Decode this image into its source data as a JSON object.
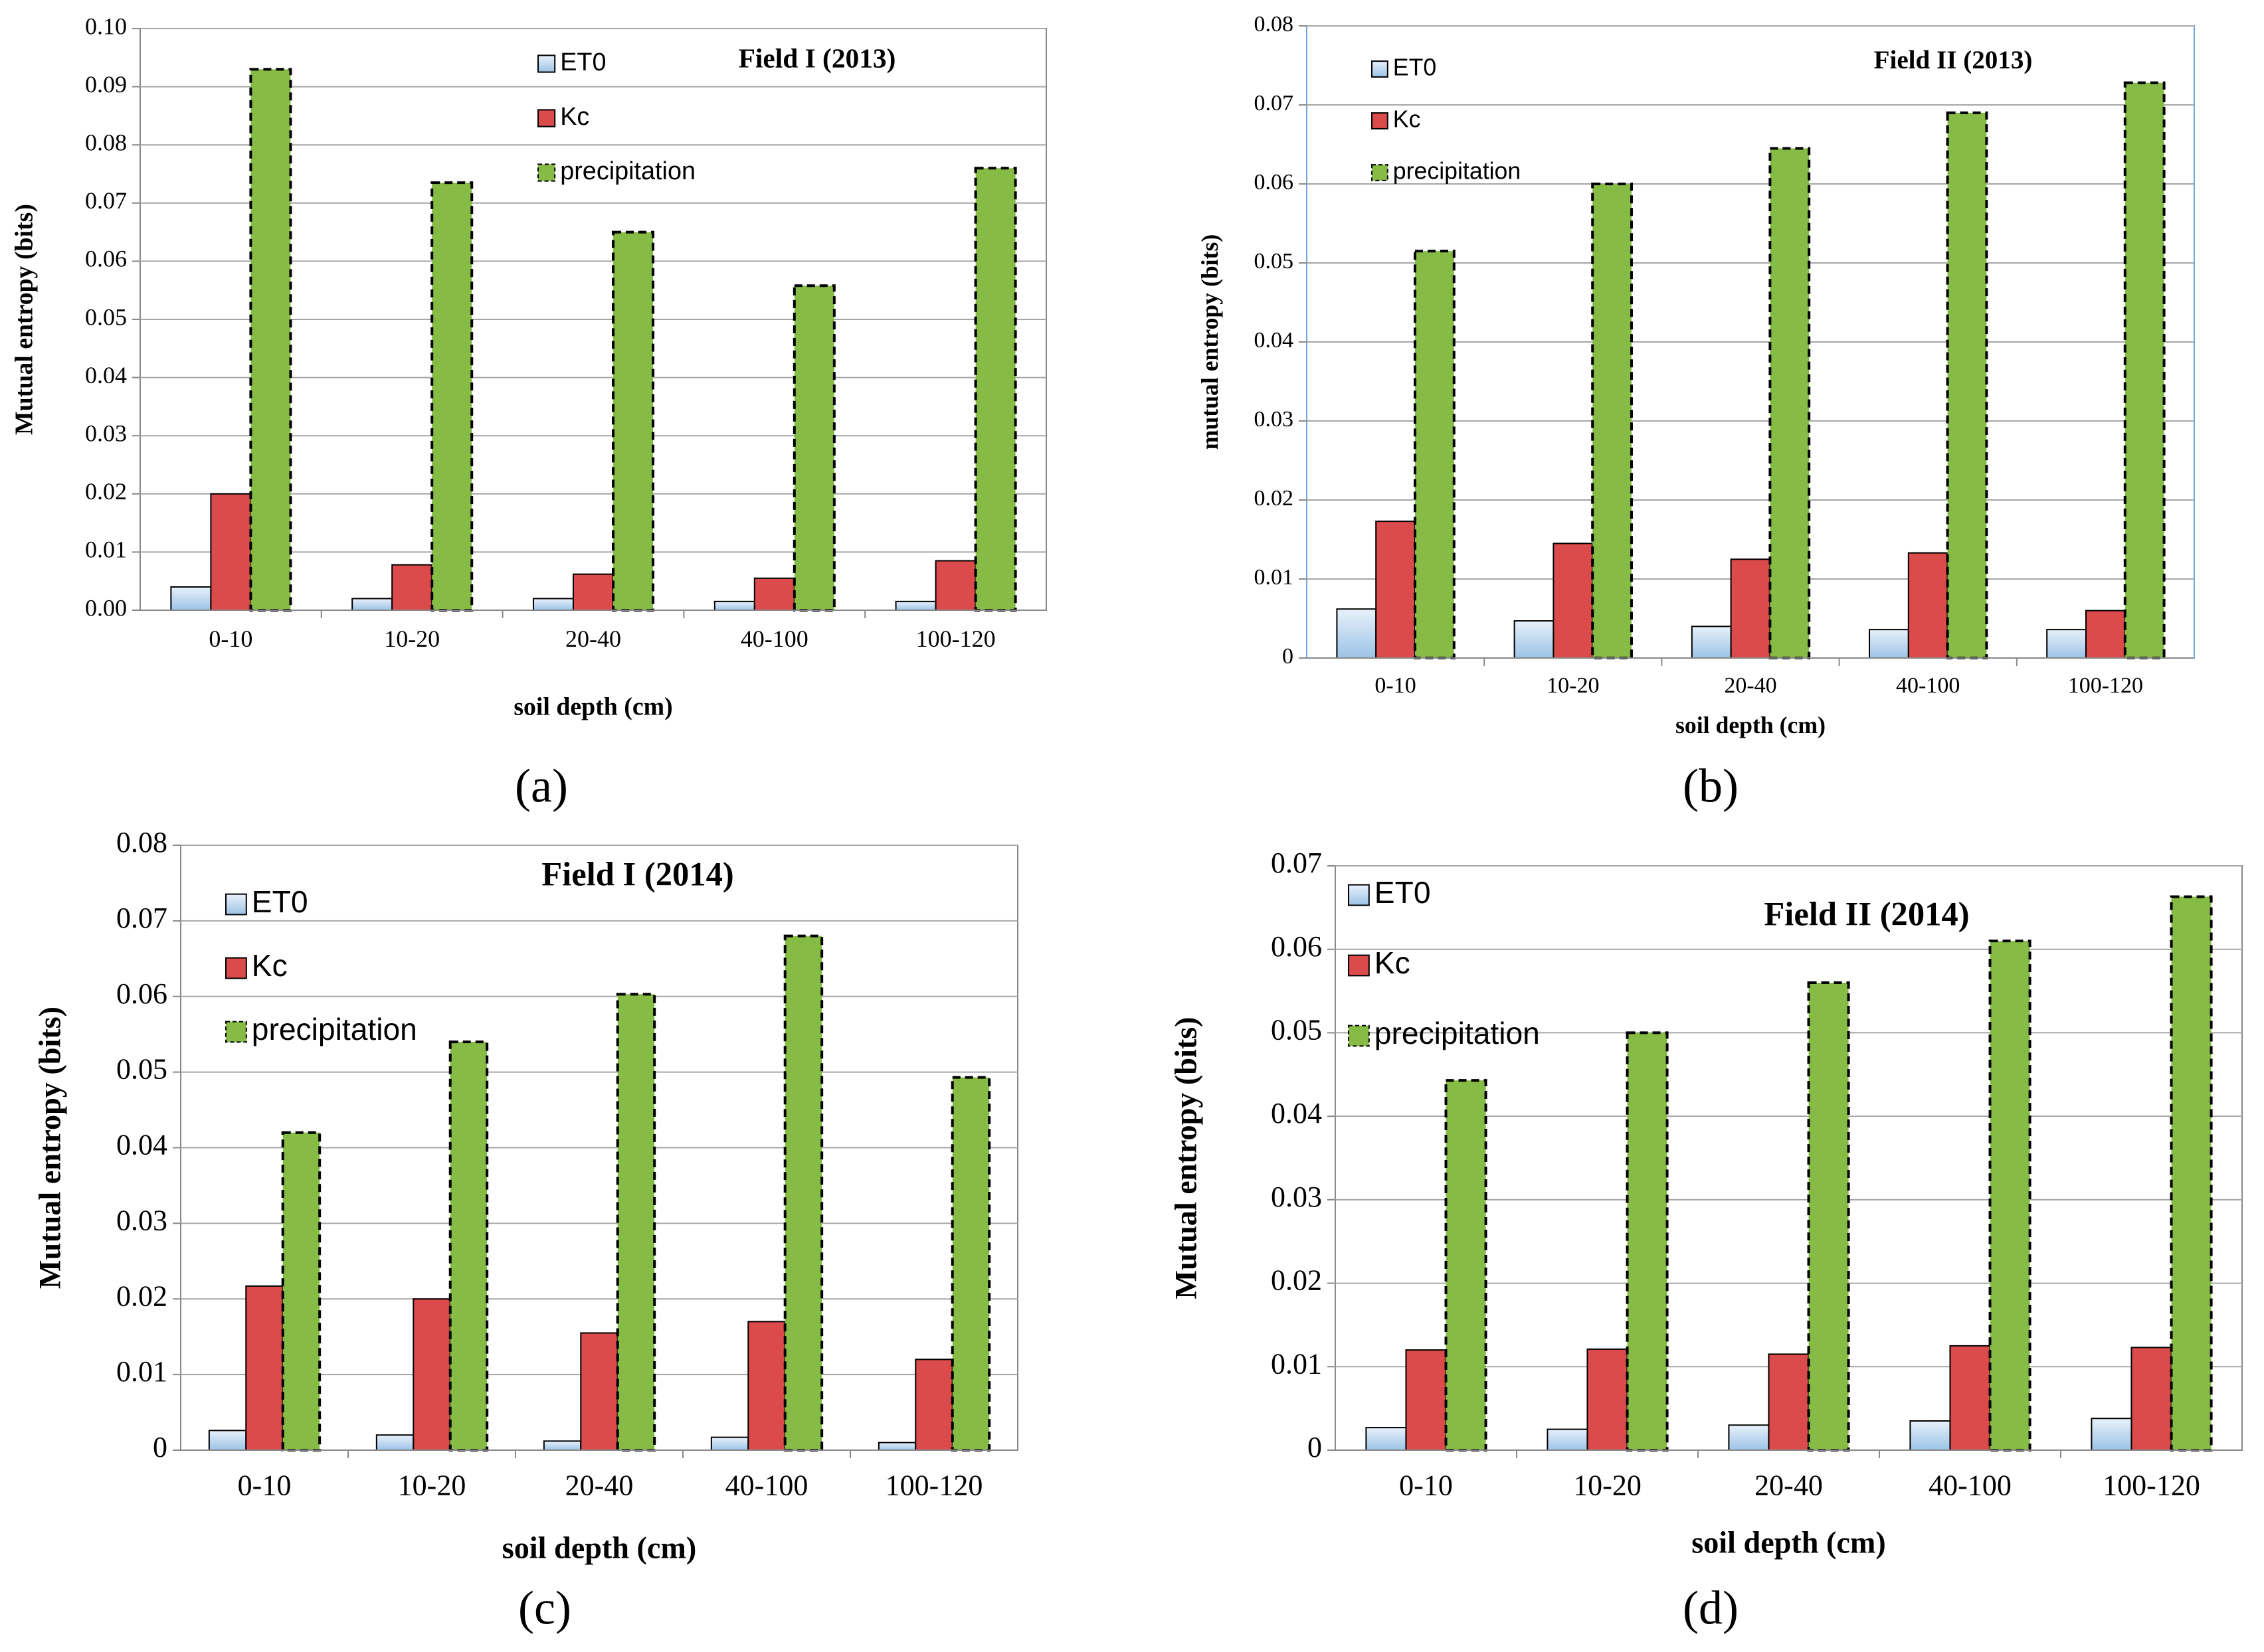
{
  "chart_data": [
    {
      "type": "bar",
      "panel_label": "(a)",
      "title": "Field I (2013)",
      "y_label": "Mutual entropy (bits)",
      "x_label": "soil depth (cm)",
      "categories": [
        "0-10",
        "10-20",
        "20-40",
        "40-100",
        "100-120"
      ],
      "series": [
        {
          "name": "ET0",
          "color": "#bdd7ee",
          "values": [
            0.004,
            0.002,
            0.002,
            0.0015,
            0.0015
          ]
        },
        {
          "name": "Kc",
          "color": "#dc4b4b",
          "values": [
            0.02,
            0.0078,
            0.0062,
            0.0055,
            0.0085
          ]
        },
        {
          "name": "precipitation",
          "color": "#86bb45",
          "values": [
            0.093,
            0.0735,
            0.065,
            0.0558,
            0.076
          ]
        }
      ],
      "ylim": [
        0,
        0.1
      ],
      "yticks": [
        {
          "value": 0,
          "label": "0.00"
        },
        0.01,
        0.02,
        0.03,
        0.04,
        0.05,
        0.06,
        0.07,
        0.08,
        0.09,
        {
          "value": 0.1,
          "label": "0.10"
        }
      ],
      "grid": true
    },
    {
      "type": "bar",
      "panel_label": "(b)",
      "title": "Field II (2013)",
      "y_label": "mutual entropy (bits)",
      "x_label": "soil depth (cm)",
      "categories": [
        "0-10",
        "10-20",
        "20-40",
        "40-100",
        "100-120"
      ],
      "series": [
        {
          "name": "ET0",
          "color": "#bdd7ee",
          "values": [
            0.0062,
            0.0047,
            0.004,
            0.0036,
            0.0036
          ]
        },
        {
          "name": "Kc",
          "color": "#dc4b4b",
          "values": [
            0.0173,
            0.0145,
            0.0125,
            0.0133,
            0.006
          ]
        },
        {
          "name": "precipitation",
          "color": "#86bb45",
          "values": [
            0.0515,
            0.06,
            0.0645,
            0.069,
            0.0728
          ]
        }
      ],
      "ylim": [
        0,
        0.08
      ],
      "yticks": [
        0,
        0.01,
        0.02,
        0.03,
        0.04,
        0.05,
        0.06,
        0.07,
        0.08
      ],
      "grid": true
    },
    {
      "type": "bar",
      "panel_label": "(c)",
      "title": "Field I (2014)",
      "y_label": "Mutual entropy (bits)",
      "x_label": "soil depth (cm)",
      "categories": [
        "0-10",
        "10-20",
        "20-40",
        "40-100",
        "100-120"
      ],
      "series": [
        {
          "name": "ET0",
          "color": "#bdd7ee",
          "values": [
            0.0026,
            0.002,
            0.0012,
            0.0017,
            0.001
          ]
        },
        {
          "name": "Kc",
          "color": "#dc4b4b",
          "values": [
            0.0217,
            0.02,
            0.0155,
            0.017,
            0.012
          ]
        },
        {
          "name": "precipitation",
          "color": "#86bb45",
          "values": [
            0.042,
            0.054,
            0.0603,
            0.068,
            0.0493
          ]
        }
      ],
      "ylim": [
        0,
        0.08
      ],
      "yticks": [
        0,
        0.01,
        0.02,
        0.03,
        0.04,
        0.05,
        0.06,
        0.07,
        0.08
      ],
      "grid": true
    },
    {
      "type": "bar",
      "panel_label": "(d)",
      "title": "Field II (2014)",
      "y_label": "Mutual entropy (bits)",
      "x_label": "soil depth (cm)",
      "categories": [
        "0-10",
        "10-20",
        "20-40",
        "40-100",
        "100-120"
      ],
      "series": [
        {
          "name": "ET0",
          "color": "#bdd7ee",
          "values": [
            0.0027,
            0.0025,
            0.003,
            0.0035,
            0.0038
          ]
        },
        {
          "name": "Kc",
          "color": "#dc4b4b",
          "values": [
            0.012,
            0.0121,
            0.0115,
            0.0125,
            0.0123
          ]
        },
        {
          "name": "precipitation",
          "color": "#86bb45",
          "values": [
            0.0443,
            0.05,
            0.056,
            0.061,
            0.0663
          ]
        }
      ],
      "ylim": [
        0,
        0.07
      ],
      "yticks": [
        0,
        0.01,
        0.02,
        0.03,
        0.04,
        0.05,
        0.06,
        0.07
      ],
      "grid": true
    }
  ]
}
